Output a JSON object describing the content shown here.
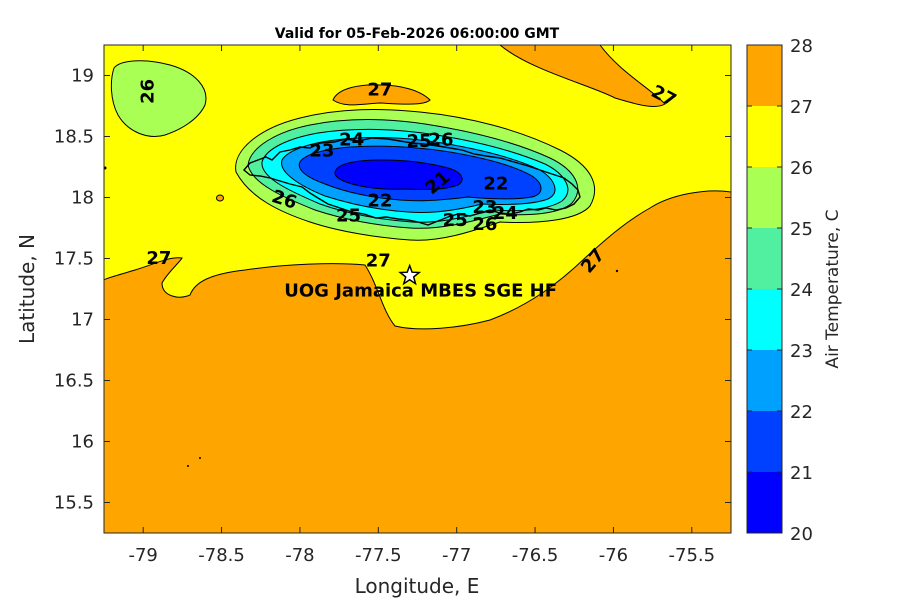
{
  "title": "Valid for 05-Feb-2026 06:00:00 GMT",
  "xlabel": "Longitude, E",
  "ylabel": "Latitude, N",
  "colorbar_label": "Air Temperature, C",
  "station": {
    "name": "UOG Jamaica MBES SGE HF",
    "lon": -77.3,
    "lat": 17.36
  },
  "chart_data": {
    "type": "heatmap",
    "title": "Valid for 05-Feb-2026 06:00:00 GMT",
    "xlabel": "Longitude, E",
    "ylabel": "Latitude, N",
    "xlim": [
      -79.25,
      -75.25
    ],
    "ylim": [
      15.25,
      19.25
    ],
    "xticks": [
      -79,
      -78.5,
      -78,
      -77.5,
      -77,
      -76.5,
      -76,
      -75.5
    ],
    "xtick_labels": [
      "-79",
      "-78.5",
      "-78",
      "-77.5",
      "-77",
      "-76.5",
      "-76",
      "-75.5"
    ],
    "yticks": [
      15.5,
      16,
      16.5,
      17,
      17.5,
      18,
      18.5,
      19
    ],
    "ytick_labels": [
      "15.5",
      "16",
      "16.5",
      "17",
      "17.5",
      "18",
      "18.5",
      "19"
    ],
    "colorbar": {
      "label": "Air Temperature, C",
      "levels": [
        20,
        21,
        22,
        23,
        24,
        25,
        26,
        27,
        28
      ],
      "level_labels": [
        "20",
        "21",
        "22",
        "23",
        "24",
        "25",
        "26",
        "27",
        "28"
      ],
      "colors": [
        "#0000ff",
        "#0040ff",
        "#00a0ff",
        "#00ffff",
        "#50f0a0",
        "#aaff55",
        "#ffff00",
        "#ffa500",
        "#ff5500"
      ]
    },
    "contour_labels": [
      {
        "text": "26",
        "lon": -78.97,
        "lat": 18.87,
        "rot": -90
      },
      {
        "text": "27",
        "lon": -77.49,
        "lat": 18.88,
        "rot": 0
      },
      {
        "text": "27",
        "lon": -75.68,
        "lat": 18.83,
        "rot": 28
      },
      {
        "text": "24",
        "lon": -77.67,
        "lat": 18.47,
        "rot": 0
      },
      {
        "text": "23",
        "lon": -77.86,
        "lat": 18.38,
        "rot": 0
      },
      {
        "text": "25",
        "lon": -77.24,
        "lat": 18.46,
        "rot": 0
      },
      {
        "text": "26",
        "lon": -77.1,
        "lat": 18.47,
        "rot": 0
      },
      {
        "text": "21",
        "lon": -77.12,
        "lat": 18.12,
        "rot": -40
      },
      {
        "text": "22",
        "lon": -76.75,
        "lat": 18.11,
        "rot": 0
      },
      {
        "text": "22",
        "lon": -77.49,
        "lat": 17.97,
        "rot": 0
      },
      {
        "text": "26",
        "lon": -78.1,
        "lat": 17.98,
        "rot": 18
      },
      {
        "text": "25",
        "lon": -77.69,
        "lat": 17.85,
        "rot": 0
      },
      {
        "text": "25",
        "lon": -77.01,
        "lat": 17.81,
        "rot": 0
      },
      {
        "text": "26",
        "lon": -76.82,
        "lat": 17.78,
        "rot": 0
      },
      {
        "text": "24",
        "lon": -76.69,
        "lat": 17.87,
        "rot": 0
      },
      {
        "text": "23",
        "lon": -76.82,
        "lat": 17.92,
        "rot": 0
      },
      {
        "text": "27",
        "lon": -78.9,
        "lat": 17.5,
        "rot": 0
      },
      {
        "text": "27",
        "lon": -77.5,
        "lat": 17.48,
        "rot": 0
      },
      {
        "text": "27",
        "lon": -76.13,
        "lat": 17.48,
        "rot": -50
      }
    ]
  }
}
